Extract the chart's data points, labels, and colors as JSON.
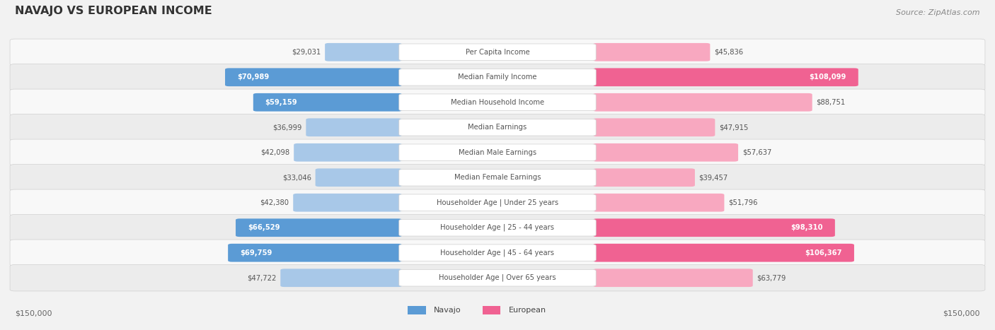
{
  "title": "NAVAJO VS EUROPEAN INCOME",
  "source": "Source: ZipAtlas.com",
  "categories": [
    "Per Capita Income",
    "Median Family Income",
    "Median Household Income",
    "Median Earnings",
    "Median Male Earnings",
    "Median Female Earnings",
    "Householder Age | Under 25 years",
    "Householder Age | 25 - 44 years",
    "Householder Age | 45 - 64 years",
    "Householder Age | Over 65 years"
  ],
  "navajo_values": [
    29031,
    70989,
    59159,
    36999,
    42098,
    33046,
    42380,
    66529,
    69759,
    47722
  ],
  "european_values": [
    45836,
    108099,
    88751,
    47915,
    57637,
    39457,
    51796,
    98310,
    106367,
    63779
  ],
  "navajo_color_dark": "#5b9bd5",
  "navajo_color_light": "#a8c8e8",
  "european_color_dark": "#f06292",
  "european_color_light": "#f8a8c0",
  "max_value": 150000,
  "bg_color": "#f2f2f2",
  "row_bg_light": "#f8f8f8",
  "row_bg_dark": "#ececec",
  "highlight_navajo": [
    1,
    2,
    7,
    8
  ],
  "highlight_european": [
    1,
    7,
    8
  ]
}
